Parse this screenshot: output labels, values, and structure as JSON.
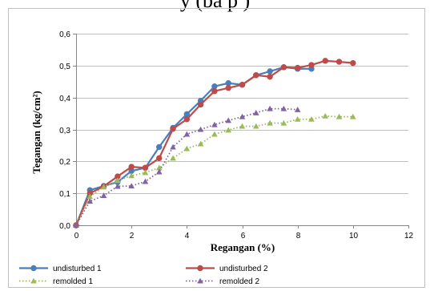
{
  "header": {
    "partial_title": "y (ba  p  )"
  },
  "chart_data": {
    "type": "line",
    "xlabel": "Regangan (%)",
    "ylabel": "Tegangan (kg/cm²)",
    "xlim": [
      0,
      12
    ],
    "ylim": [
      0,
      0.6
    ],
    "x_ticks": [
      "0",
      "2",
      "4",
      "6",
      "8",
      "10",
      "12"
    ],
    "y_ticks": [
      "0,0",
      "0,1",
      "0,2",
      "0,3",
      "0,4",
      "0,5",
      "0,6"
    ],
    "grid": "horizontal",
    "legend_position": "bottom",
    "series": [
      {
        "name": "undisturbed 1",
        "color": "#4a7ebb",
        "dash": "solid",
        "marker": "circle",
        "x": [
          0,
          0.5,
          1.0,
          1.5,
          2.0,
          2.5,
          3.0,
          3.5,
          4.0,
          4.5,
          5.0,
          5.5,
          6.0,
          6.5,
          7.0,
          7.5,
          8.0,
          8.5
        ],
        "y": [
          0,
          0.11,
          0.123,
          0.135,
          0.17,
          0.18,
          0.245,
          0.305,
          0.348,
          0.39,
          0.435,
          0.445,
          0.44,
          0.47,
          0.482,
          0.495,
          0.49,
          0.49
        ]
      },
      {
        "name": "undisturbed 2",
        "color": "#be4b48",
        "dash": "solid",
        "marker": "circle",
        "x": [
          0,
          0.5,
          1.0,
          1.5,
          2.0,
          2.5,
          3.0,
          3.5,
          4.0,
          4.5,
          5.0,
          5.5,
          6.0,
          6.5,
          7.0,
          7.5,
          8.0,
          8.5,
          9.0,
          9.5,
          10.0
        ],
        "y": [
          0,
          0.1,
          0.122,
          0.153,
          0.183,
          0.18,
          0.21,
          0.302,
          0.332,
          0.378,
          0.42,
          0.43,
          0.44,
          0.47,
          0.465,
          0.495,
          0.493,
          0.502,
          0.515,
          0.512,
          0.508
        ]
      },
      {
        "name": "remolded 1",
        "color": "#9bbb59",
        "dash": "dotted",
        "marker": "triangle",
        "x": [
          0,
          0.5,
          1.0,
          1.5,
          2.0,
          2.5,
          3.0,
          3.5,
          4.0,
          4.5,
          5.0,
          5.5,
          6.0,
          6.5,
          7.0,
          7.5,
          8.0,
          8.5,
          9.0,
          9.5,
          10.0
        ],
        "y": [
          0,
          0.09,
          0.12,
          0.14,
          0.155,
          0.165,
          0.18,
          0.21,
          0.24,
          0.255,
          0.285,
          0.298,
          0.31,
          0.31,
          0.32,
          0.32,
          0.332,
          0.332,
          0.342,
          0.34,
          0.34
        ]
      },
      {
        "name": "remolded 2",
        "color": "#8064a2",
        "dash": "dotted",
        "marker": "triangle",
        "x": [
          0,
          0.5,
          1.0,
          1.5,
          2.0,
          2.5,
          3.0,
          3.5,
          4.0,
          4.5,
          5.0,
          5.5,
          6.0,
          6.5,
          7.0,
          7.5,
          8.0
        ],
        "y": [
          0,
          0.075,
          0.093,
          0.122,
          0.123,
          0.137,
          0.167,
          0.245,
          0.285,
          0.3,
          0.315,
          0.328,
          0.34,
          0.352,
          0.365,
          0.365,
          0.362
        ]
      }
    ]
  }
}
